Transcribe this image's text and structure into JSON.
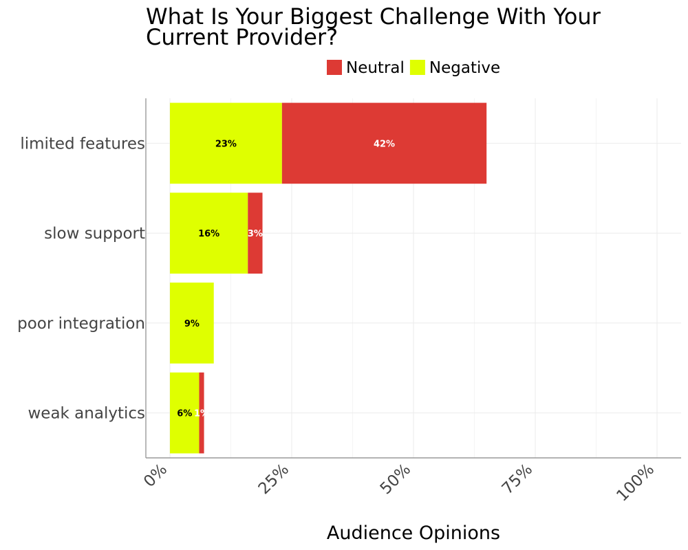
{
  "chart_data": {
    "type": "bar",
    "orientation": "horizontal",
    "stacked": true,
    "title_lines": [
      "What Is Your Biggest Challenge With Your",
      "Current Provider?"
    ],
    "xlabel": "Audience Opinions",
    "ylabel": "",
    "categories": [
      "limited features",
      "slow support",
      "poor integration",
      "weak analytics"
    ],
    "series": [
      {
        "name": "Negative",
        "color": "#dfff00",
        "label_color": "#000000",
        "values": [
          23,
          16,
          9,
          6
        ],
        "labels": [
          "23%",
          "16%",
          "9%",
          "6%"
        ]
      },
      {
        "name": "Neutral",
        "color": "#dd3a34",
        "label_color": "#ffffff",
        "values": [
          42,
          3,
          0,
          1
        ],
        "labels": [
          "42%",
          "3%",
          "",
          "1%"
        ]
      }
    ],
    "legend_order": [
      "Neutral",
      "Negative"
    ],
    "legend_position": "top",
    "xlim": [
      0,
      100
    ],
    "x_ticks": [
      0,
      25,
      50,
      75,
      100
    ],
    "x_tick_labels": [
      "0%",
      "25%",
      "50%",
      "75%",
      "100%"
    ],
    "grid": true
  }
}
